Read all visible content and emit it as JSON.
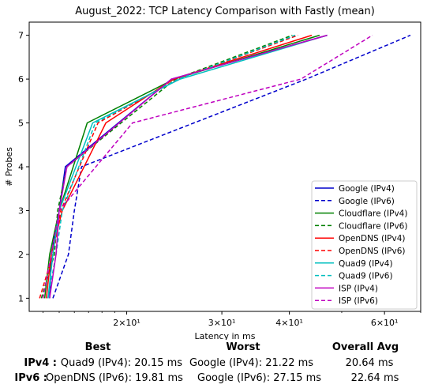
{
  "chart_data": {
    "type": "line",
    "title": "August_2022: TCP Latency Comparison with Fastly (mean)",
    "xlabel": "Latency in ms",
    "ylabel": "# Probes",
    "xscale": "log",
    "xlim": [
      13.2,
      70
    ],
    "ylim": [
      0.7,
      7.3
    ],
    "y_ticks": [
      1,
      2,
      3,
      4,
      5,
      6,
      7
    ],
    "x_ticks": [
      {
        "value": 20,
        "label": "2×10¹"
      },
      {
        "value": 30,
        "label": "3×10¹"
      },
      {
        "value": 40,
        "label": "4×10¹"
      },
      {
        "value": 60,
        "label": "6×10¹"
      }
    ],
    "grid": false,
    "legend": "lower right",
    "series": [
      {
        "name": "Google (IPv4)",
        "color": "#0000cc",
        "dash": false,
        "x": [
          14.4,
          14.5,
          15.0,
          15.4,
          24.2,
          47.0
        ],
        "y": [
          1,
          2,
          3,
          4,
          6,
          7
        ]
      },
      {
        "name": "Google (IPv6)",
        "color": "#0000cc",
        "dash": true,
        "x": [
          14.6,
          15.6,
          16.0,
          16.5,
          43.0,
          67.0
        ],
        "y": [
          1,
          2,
          3,
          4,
          6,
          7
        ]
      },
      {
        "name": "Cloudflare (IPv4)",
        "color": "#008000",
        "dash": false,
        "x": [
          14.1,
          14.4,
          15.0,
          16.9,
          24.5,
          45.5
        ],
        "y": [
          1,
          2,
          3,
          5,
          6,
          7
        ]
      },
      {
        "name": "Cloudflare (IPv6)",
        "color": "#008000",
        "dash": true,
        "x": [
          13.9,
          14.7,
          14.9,
          15.5,
          24.6,
          40.5
        ],
        "y": [
          1,
          2,
          3,
          4,
          6,
          7
        ]
      },
      {
        "name": "OpenDNS (IPv4)",
        "color": "#ff0000",
        "dash": false,
        "x": [
          14.2,
          14.5,
          15.2,
          18.3,
          24.4,
          44.0
        ],
        "y": [
          1,
          2,
          3,
          5,
          6,
          7
        ]
      },
      {
        "name": "OpenDNS (IPv6)",
        "color": "#ff0000",
        "dash": true,
        "x": [
          13.8,
          14.6,
          15.1,
          17.7,
          24.8,
          41.5
        ],
        "y": [
          1,
          2,
          3,
          5,
          6,
          7
        ]
      },
      {
        "name": "Quad9 (IPv4)",
        "color": "#00bfbf",
        "dash": false,
        "x": [
          14.3,
          14.6,
          15.0,
          17.3,
          25.1,
          47.0
        ],
        "y": [
          1,
          2,
          3,
          5,
          6,
          7
        ]
      },
      {
        "name": "Quad9 (IPv6)",
        "color": "#00bfbf",
        "dash": true,
        "x": [
          14.3,
          14.8,
          15.2,
          17.5,
          24.9,
          41.0
        ],
        "y": [
          1,
          2,
          3,
          5,
          6,
          7
        ]
      },
      {
        "name": "ISP (IPv4)",
        "color": "#bf00bf",
        "dash": false,
        "x": [
          14.4,
          14.8,
          15.0,
          15.5,
          24.2,
          47.0
        ],
        "y": [
          1,
          2,
          3,
          4,
          6,
          7
        ]
      },
      {
        "name": "ISP (IPv6)",
        "color": "#bf00bf",
        "dash": true,
        "x": [
          14.0,
          14.5,
          15.0,
          20.5,
          42.0,
          57.0
        ],
        "y": [
          1,
          2,
          3,
          5,
          6,
          7
        ]
      }
    ]
  },
  "stats": {
    "headers": {
      "best": "Best",
      "worst": "Worst",
      "avg": "Overall Avg"
    },
    "rows": [
      {
        "label": "IPv4 :",
        "best": "Quad9 (IPv4): 20.15 ms",
        "worst": "Google (IPv4): 21.22 ms",
        "avg": "20.64 ms"
      },
      {
        "label": "IPv6 :",
        "best": "OpenDNS (IPv6): 19.81 ms",
        "worst": "Google (IPv6): 27.15 ms",
        "avg": "22.64 ms"
      }
    ]
  }
}
